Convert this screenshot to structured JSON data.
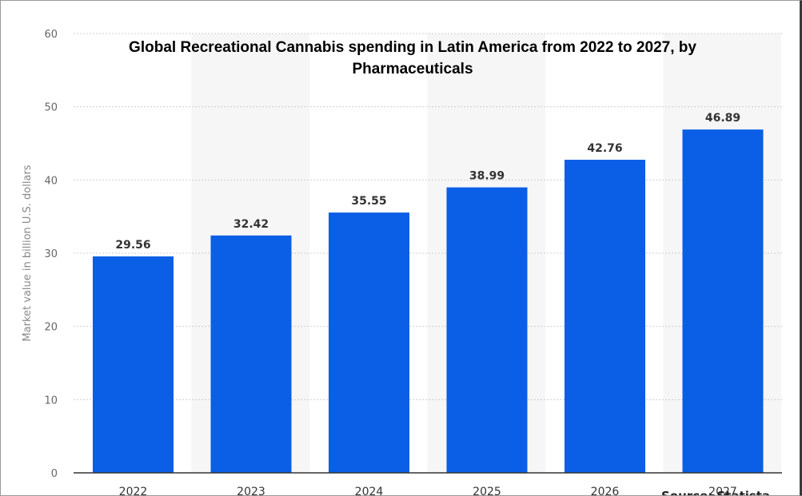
{
  "chart_data": {
    "type": "bar",
    "title": "Global Recreational Cannabis spending in Latin America from 2022 to 2027, by Pharmaceuticals",
    "xlabel": "",
    "ylabel": "Market value in billion U.S. dollars",
    "categories": [
      "2022",
      "2023",
      "2024",
      "2025",
      "2026",
      "2027"
    ],
    "values": [
      29.56,
      32.42,
      35.55,
      38.99,
      42.76,
      46.89
    ],
    "value_labels": [
      "29.56",
      "32.42",
      "35.55",
      "38.99",
      "42.76",
      "46.89"
    ],
    "y_ticks": [
      "0",
      "10",
      "20",
      "30",
      "40",
      "50",
      "60"
    ],
    "ylim": [
      0,
      60
    ],
    "grid": true,
    "bar_color": "#0b5ee6",
    "band_color": "#f6f6f6"
  },
  "source_text": "Source: Statista"
}
